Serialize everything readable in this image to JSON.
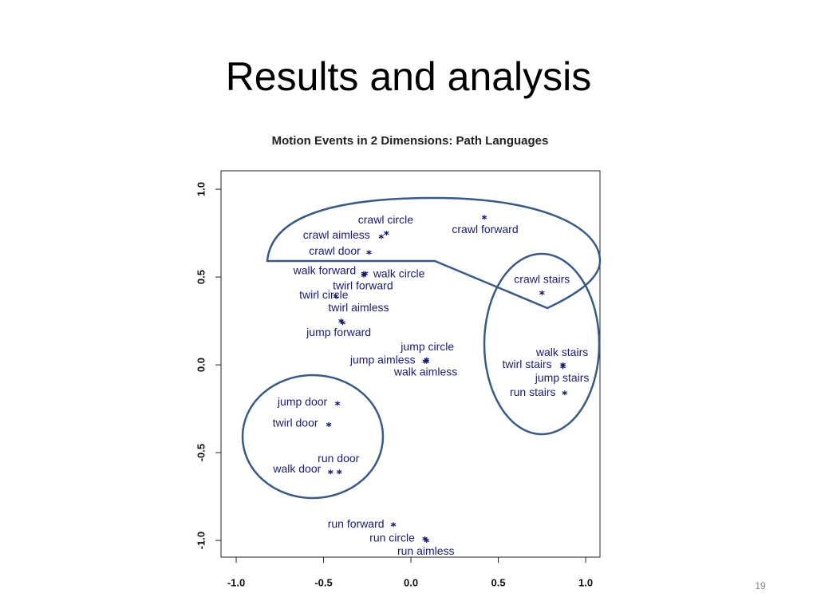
{
  "slide": {
    "title": "Results and analysis",
    "page_number": "19"
  },
  "chart_data": {
    "type": "scatter",
    "title": "Motion Events in 2 Dimensions: Path Languages",
    "point_labels": [
      "crawl circle",
      "crawl forward",
      "crawl aimless",
      "crawl door",
      "walk forward",
      "walk circle",
      "twirl forward",
      "twirl circle",
      "twirl aimless",
      "jump forward",
      "jump circle",
      "jump aimless",
      "walk aimless",
      "crawl stairs",
      "walk stairs",
      "twirl stairs",
      "jump stairs",
      "run stairs",
      "jump door",
      "twirl door",
      "run door",
      "walk door",
      "run forward",
      "run circle",
      "run aimless"
    ],
    "x": [
      -0.14,
      0.42,
      -0.17,
      -0.24,
      -0.27,
      -0.26,
      -0.27,
      -0.43,
      -0.4,
      -0.39,
      0.09,
      0.09,
      0.08,
      0.75,
      0.87,
      0.87,
      0.87,
      0.88,
      -0.42,
      -0.47,
      -0.41,
      -0.46,
      -0.1,
      0.08,
      0.09
    ],
    "values": [
      0.75,
      0.84,
      0.73,
      0.64,
      0.52,
      0.52,
      0.51,
      0.39,
      0.25,
      0.24,
      0.03,
      0.02,
      0.02,
      0.41,
      0.0,
      0.0,
      -0.01,
      -0.16,
      -0.22,
      -0.34,
      -0.61,
      -0.61,
      -0.91,
      -0.99,
      -1.0
    ],
    "color": "#1a1a6e",
    "xlim": [
      -1.087,
      1.082
    ],
    "ylim": [
      -1.095,
      1.105
    ],
    "xticks": [
      {
        "value": -1,
        "label": "-1.0"
      },
      -0.5,
      {
        "value": 0,
        "label": "0.0"
      },
      0.5,
      {
        "value": 1,
        "label": "1.0"
      }
    ],
    "yticks": [
      {
        "value": -1,
        "label": "-1.0"
      },
      -0.5,
      {
        "value": 0,
        "label": "0.0"
      },
      0.5,
      {
        "value": 1,
        "label": "1.0"
      }
    ]
  }
}
